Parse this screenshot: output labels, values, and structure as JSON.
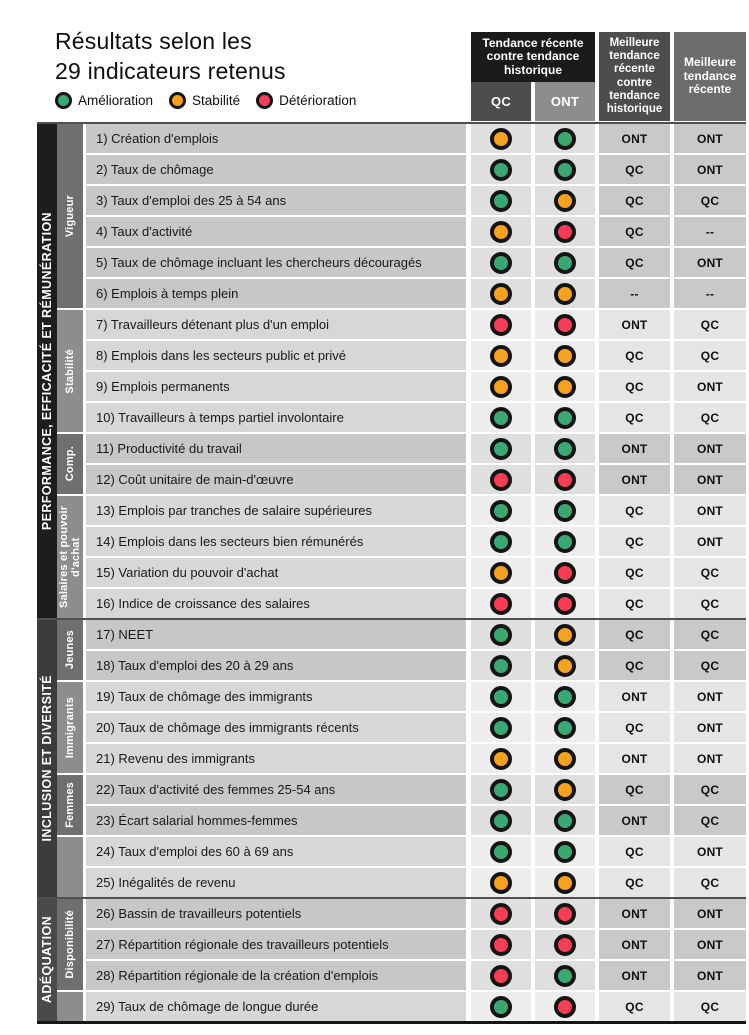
{
  "chart_data": {
    "type": "table",
    "title": "Résultats selon les\n29 indicateurs retenus",
    "legend": [
      {
        "label": "Amélioration",
        "status": "amelioration"
      },
      {
        "label": "Stabilité",
        "status": "stabilite"
      },
      {
        "label": "Détérioration",
        "status": "deterioration"
      }
    ],
    "status_colors": {
      "amelioration": "#3aa873",
      "stabilite": "#f7a21e",
      "deterioration": "#f63d55"
    },
    "ring_color": "#141414",
    "columns": {
      "trend_group": "Tendance récente contre tendance historique",
      "qc": "QC",
      "ont": "ONT",
      "best_vs_hist": "Meilleure tendance récente contre tendance historique",
      "best_recent": "Meilleure tendance récente"
    },
    "sections": [
      {
        "label": "PERFORMANCE, EFFICACITÉ ET RÉMUNÉRATION",
        "groups": [
          {
            "label": "Vigueur",
            "rows": [
              {
                "label": "1) Création d'emplois",
                "qc": "stabilite",
                "ont": "amelioration",
                "best_vs_hist": "ONT",
                "best_recent": "ONT"
              },
              {
                "label": "2) Taux de chômage",
                "qc": "amelioration",
                "ont": "amelioration",
                "best_vs_hist": "QC",
                "best_recent": "ONT"
              },
              {
                "label": "3) Taux d'emploi des 25 à 54 ans",
                "qc": "amelioration",
                "ont": "stabilite",
                "best_vs_hist": "QC",
                "best_recent": "QC"
              },
              {
                "label": "4) Taux d'activité",
                "qc": "stabilite",
                "ont": "deterioration",
                "best_vs_hist": "QC",
                "best_recent": "--"
              },
              {
                "label": "5) Taux de chômage incluant les chercheurs découragés",
                "qc": "amelioration",
                "ont": "amelioration",
                "best_vs_hist": "QC",
                "best_recent": "ONT"
              },
              {
                "label": "6) Emplois à temps plein",
                "qc": "stabilite",
                "ont": "stabilite",
                "best_vs_hist": "--",
                "best_recent": "--"
              }
            ]
          },
          {
            "label": "Stabilité",
            "rows": [
              {
                "label": "7) Travailleurs détenant plus d'un emploi",
                "qc": "deterioration",
                "ont": "deterioration",
                "best_vs_hist": "ONT",
                "best_recent": "QC"
              },
              {
                "label": "8) Emplois dans les secteurs public et privé",
                "qc": "stabilite",
                "ont": "stabilite",
                "best_vs_hist": "QC",
                "best_recent": "QC"
              },
              {
                "label": "9) Emplois permanents",
                "qc": "stabilite",
                "ont": "stabilite",
                "best_vs_hist": "QC",
                "best_recent": "ONT"
              },
              {
                "label": "10) Travailleurs à temps partiel involontaire",
                "qc": "amelioration",
                "ont": "amelioration",
                "best_vs_hist": "QC",
                "best_recent": "QC"
              }
            ]
          },
          {
            "label": "Comp.",
            "rows": [
              {
                "label": "11) Productivité du travail",
                "qc": "amelioration",
                "ont": "amelioration",
                "best_vs_hist": "ONT",
                "best_recent": "ONT"
              },
              {
                "label": "12) Coût unitaire de main-d'œuvre",
                "qc": "deterioration",
                "ont": "deterioration",
                "best_vs_hist": "ONT",
                "best_recent": "ONT"
              }
            ]
          },
          {
            "label": "Salaires et pouvoir d'achat",
            "rows": [
              {
                "label": "13) Emplois par tranches de salaire supérieures",
                "qc": "amelioration",
                "ont": "amelioration",
                "best_vs_hist": "QC",
                "best_recent": "ONT"
              },
              {
                "label": "14) Emplois dans les secteurs bien rémunérés",
                "qc": "amelioration",
                "ont": "amelioration",
                "best_vs_hist": "QC",
                "best_recent": "ONT"
              },
              {
                "label": "15) Variation du pouvoir d'achat",
                "qc": "stabilite",
                "ont": "deterioration",
                "best_vs_hist": "QC",
                "best_recent": "QC"
              },
              {
                "label": "16) Indice de croissance des salaires",
                "qc": "deterioration",
                "ont": "deterioration",
                "best_vs_hist": "QC",
                "best_recent": "QC"
              }
            ]
          }
        ]
      },
      {
        "label": "INCLUSION ET DIVERSITÉ",
        "groups": [
          {
            "label": "Jeunes",
            "rows": [
              {
                "label": "17) NEET",
                "qc": "amelioration",
                "ont": "stabilite",
                "best_vs_hist": "QC",
                "best_recent": "QC"
              },
              {
                "label": "18) Taux d'emploi des 20 à 29 ans",
                "qc": "amelioration",
                "ont": "stabilite",
                "best_vs_hist": "QC",
                "best_recent": "QC"
              }
            ]
          },
          {
            "label": "Immigrants",
            "rows": [
              {
                "label": "19) Taux de chômage des immigrants",
                "qc": "amelioration",
                "ont": "amelioration",
                "best_vs_hist": "ONT",
                "best_recent": "ONT"
              },
              {
                "label": "20) Taux de chômage des immigrants récents",
                "qc": "amelioration",
                "ont": "amelioration",
                "best_vs_hist": "QC",
                "best_recent": "ONT"
              },
              {
                "label": "21) Revenu des immigrants",
                "qc": "stabilite",
                "ont": "stabilite",
                "best_vs_hist": "ONT",
                "best_recent": "ONT"
              }
            ]
          },
          {
            "label": "Femmes",
            "rows": [
              {
                "label": "22) Taux d'activité des femmes 25-54 ans",
                "qc": "amelioration",
                "ont": "stabilite",
                "best_vs_hist": "QC",
                "best_recent": "QC"
              },
              {
                "label": "23) Écart salarial hommes-femmes",
                "qc": "amelioration",
                "ont": "amelioration",
                "best_vs_hist": "ONT",
                "best_recent": "QC"
              }
            ]
          },
          {
            "label": "",
            "rows": [
              {
                "label": "24) Taux d'emploi des 60 à 69 ans",
                "qc": "amelioration",
                "ont": "amelioration",
                "best_vs_hist": "QC",
                "best_recent": "ONT"
              },
              {
                "label": "25) Inégalités de revenu",
                "qc": "stabilite",
                "ont": "stabilite",
                "best_vs_hist": "QC",
                "best_recent": "QC"
              }
            ]
          }
        ]
      },
      {
        "label": "ADÉQUATION",
        "groups": [
          {
            "label": "Disponibilité",
            "rows": [
              {
                "label": "26) Bassin de travailleurs potentiels",
                "qc": "deterioration",
                "ont": "deterioration",
                "best_vs_hist": "ONT",
                "best_recent": "ONT"
              },
              {
                "label": "27) Répartition régionale des travailleurs potentiels",
                "qc": "deterioration",
                "ont": "deterioration",
                "best_vs_hist": "ONT",
                "best_recent": "ONT"
              },
              {
                "label": "28) Répartition régionale de la création d'emplois",
                "qc": "deterioration",
                "ont": "amelioration",
                "best_vs_hist": "ONT",
                "best_recent": "ONT"
              }
            ]
          },
          {
            "label": "",
            "rows": [
              {
                "label": "29) Taux de chômage de longue durée",
                "qc": "amelioration",
                "ont": "deterioration",
                "best_vs_hist": "QC",
                "best_recent": "QC"
              }
            ]
          }
        ]
      }
    ]
  }
}
